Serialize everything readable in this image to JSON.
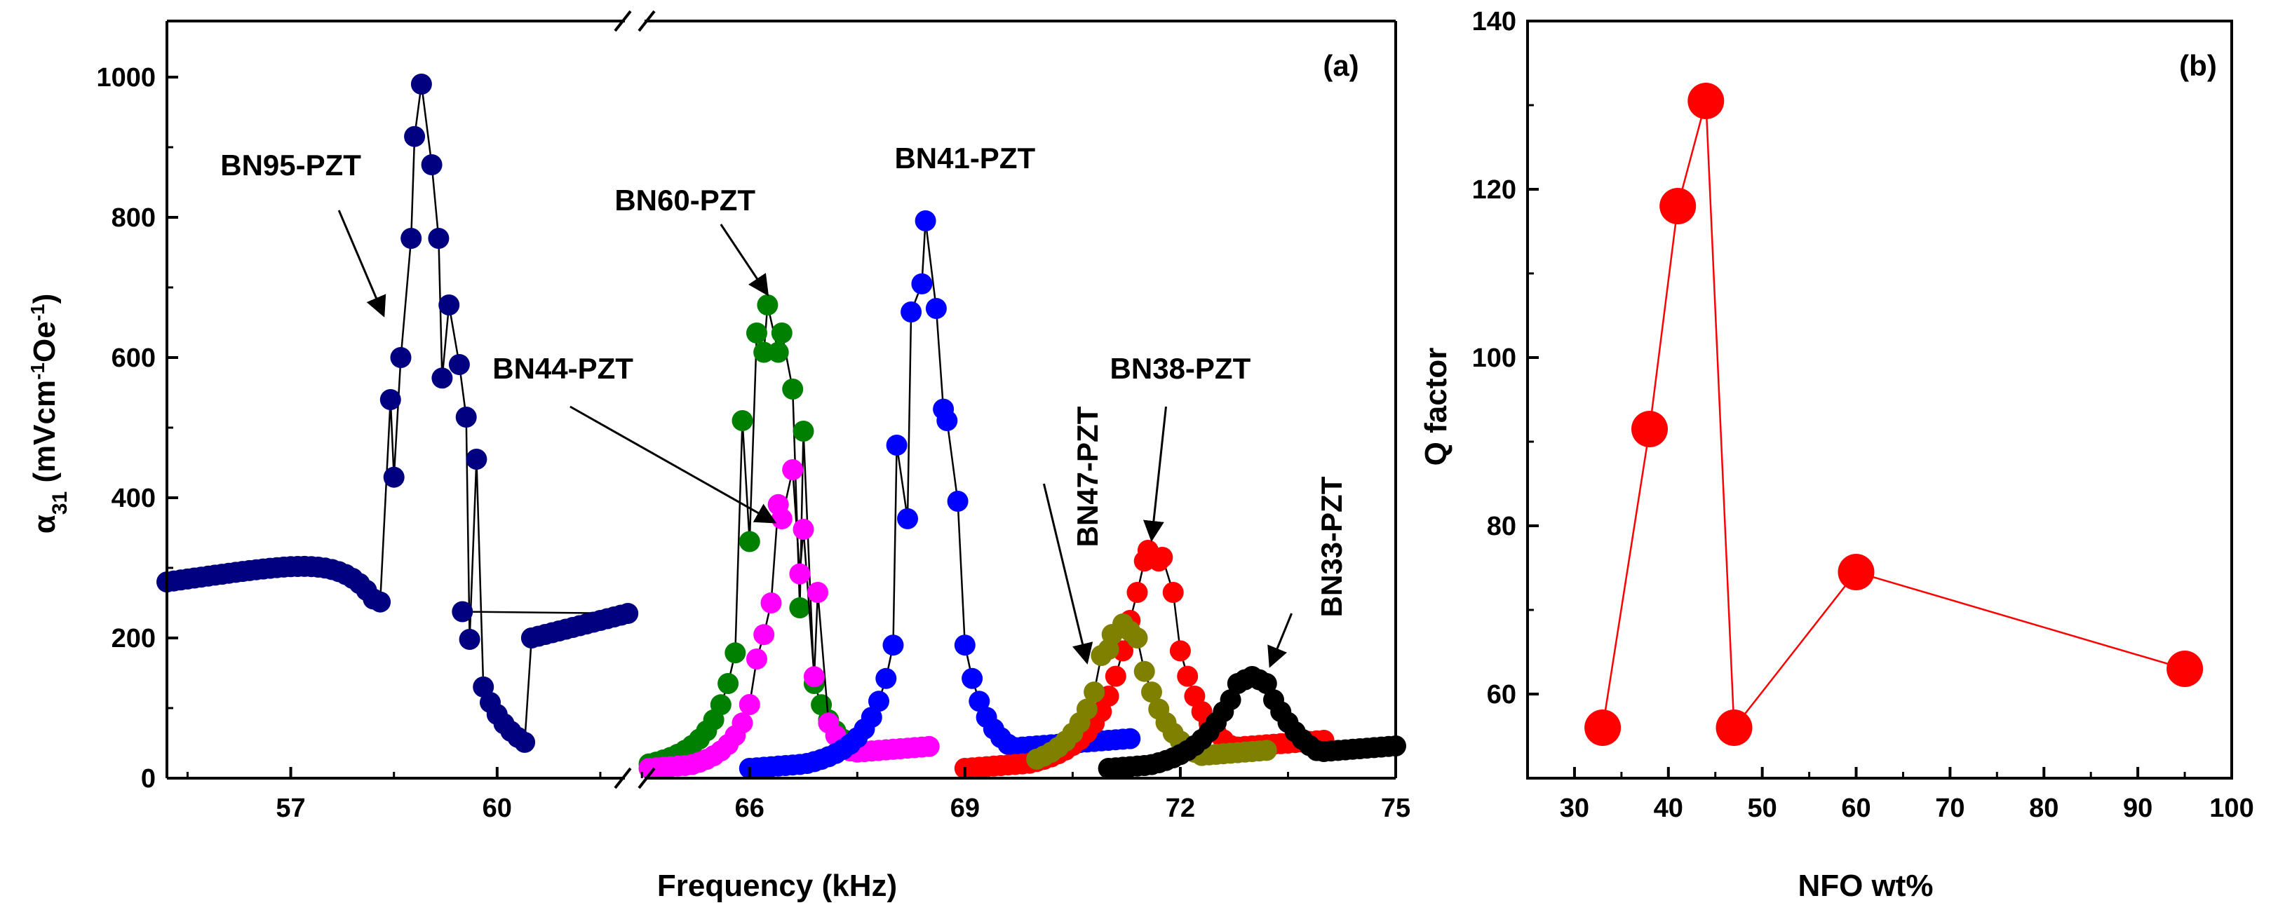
{
  "chart_data": [
    {
      "type": "scatter",
      "panel_label": "(a)",
      "xlabel": "Frequency (kHz)",
      "ylabel": {
        "symbol": "α",
        "sub": "31",
        "text1": " (mVcm",
        "sup1": "-1",
        "text2": "Oe",
        "sup2": "-1",
        "text3": ")"
      },
      "xlim": [
        55.2,
        75
      ],
      "axis_break": [
        62,
        64.4
      ],
      "ylim": [
        0,
        1080
      ],
      "xticks": [
        57,
        60,
        66,
        69,
        72,
        75
      ],
      "xtick_labels": [
        "57",
        "60",
        "66",
        "69",
        "72",
        "75"
      ],
      "yticks": [
        0,
        200,
        400,
        600,
        800,
        1000
      ],
      "ytick_labels": [
        "0",
        "200",
        "400",
        "600",
        "800",
        "1000"
      ],
      "grid": false,
      "series": [
        {
          "name": "BN95-PZT",
          "color": "#000080",
          "f0": 58.9,
          "peak": 990,
          "width": 0.35,
          "base": 160,
          "start": 55.2,
          "end": 62,
          "step": 0.1,
          "points": [
            [
              58.45,
              540
            ],
            [
              58.6,
              600
            ],
            [
              58.75,
              770
            ],
            [
              58.9,
              990
            ],
            [
              59.05,
              875
            ],
            [
              59.15,
              770
            ],
            [
              59.3,
              675
            ],
            [
              59.45,
              590
            ],
            [
              59.55,
              515
            ],
            [
              59.7,
              455
            ]
          ]
        },
        {
          "name": "BN60-PZT",
          "color": "#008000",
          "f0": 66.3,
          "peak": 675,
          "width": 0.3,
          "base": 0,
          "start": 64.6,
          "end": 68.0,
          "step": 0.1,
          "points": [
            [
              65.9,
              510
            ],
            [
              66.1,
              635
            ],
            [
              66.25,
              675
            ],
            [
              66.45,
              635
            ],
            [
              66.6,
              555
            ],
            [
              66.75,
              495
            ]
          ]
        },
        {
          "name": "BN44-PZT",
          "color": "#ff00ff",
          "f0": 66.5,
          "peak": 440,
          "width": 0.28,
          "base": 0,
          "start": 64.6,
          "end": 68.5,
          "step": 0.1,
          "points": [
            [
              66.1,
              170
            ],
            [
              66.3,
              250
            ],
            [
              66.45,
              370
            ],
            [
              66.6,
              440
            ],
            [
              66.75,
              355
            ],
            [
              66.95,
              265
            ]
          ]
        },
        {
          "name": "BN41-PZT",
          "color": "#0000ff",
          "f0": 68.5,
          "peak": 795,
          "width": 0.28,
          "base": 0,
          "start": 66.0,
          "end": 71.3,
          "step": 0.1,
          "points": [
            [
              68.05,
              475
            ],
            [
              68.25,
              665
            ],
            [
              68.45,
              795
            ],
            [
              68.6,
              670
            ],
            [
              68.75,
              510
            ],
            [
              68.9,
              395
            ]
          ]
        },
        {
          "name": "BN38-PZT",
          "color": "#ff0000",
          "f0": 71.6,
          "peak": 325,
          "width": 0.45,
          "base": 0,
          "start": 69.0,
          "end": 74.0,
          "step": 0.1,
          "points": [
            [
              71.4,
              265
            ],
            [
              71.55,
              325
            ],
            [
              71.75,
              315
            ],
            [
              71.9,
              265
            ]
          ]
        },
        {
          "name": "BN47-PZT",
          "color": "#808000",
          "f0": 71.2,
          "peak": 220,
          "width": 0.45,
          "base": 0,
          "start": 70.0,
          "end": 73.2,
          "step": 0.1,
          "points": [
            [
              70.9,
              175
            ],
            [
              71.05,
              205
            ],
            [
              71.2,
              220
            ],
            [
              71.4,
              200
            ]
          ]
        },
        {
          "name": "BN33-PZT",
          "color": "#000000",
          "f0": 73.0,
          "peak": 145,
          "width": 0.55,
          "base": 0,
          "start": 71.0,
          "end": 75.0,
          "step": 0.1,
          "points": [
            [
              72.8,
              135
            ],
            [
              73.0,
              145
            ],
            [
              73.2,
              135
            ]
          ]
        }
      ],
      "annotations": [
        {
          "text": "BN95-PZT",
          "x": 57.0,
          "y": 860
        },
        {
          "text": "BN60-PZT",
          "x": 65.1,
          "y": 810
        },
        {
          "text": "BN41-PZT",
          "x": 69.0,
          "y": 870
        },
        {
          "text": "BN44-PZT",
          "x": 63.4,
          "y": 570
        },
        {
          "text": "BN47-PZT",
          "x": 70.85,
          "y": 430,
          "rotate": true
        },
        {
          "text": "BN38-PZT",
          "x": 72.0,
          "y": 570
        },
        {
          "text": "BN33-PZT",
          "x": 74.25,
          "y": 330,
          "rotate": true
        }
      ]
    },
    {
      "type": "line",
      "panel_label": "(b)",
      "xlabel": "NFO wt%",
      "ylabel": "Q factor",
      "xlim": [
        25,
        100
      ],
      "ylim": [
        50,
        140
      ],
      "xticks": [
        30,
        40,
        50,
        60,
        70,
        80,
        90,
        100
      ],
      "xtick_labels": [
        "30",
        "40",
        "50",
        "60",
        "70",
        "80",
        "90",
        "100"
      ],
      "yticks": [
        60,
        80,
        100,
        120,
        140
      ],
      "ytick_labels": [
        "60",
        "80",
        "100",
        "120",
        "140"
      ],
      "grid": false,
      "color": "#ff0000",
      "x": [
        33,
        38,
        41,
        44,
        47,
        60,
        95
      ],
      "y": [
        56,
        91.5,
        118,
        130.5,
        56,
        74.5,
        63
      ]
    }
  ]
}
